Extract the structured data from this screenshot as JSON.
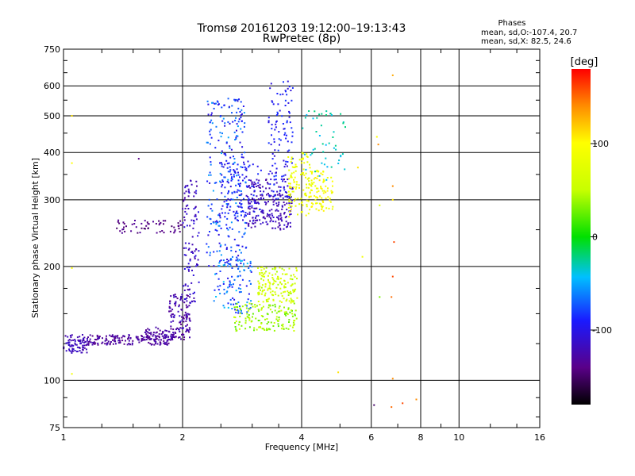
{
  "chart_data": {
    "type": "scatter",
    "title": "Tromsø 20161203 19:12:00–19:13:43",
    "subtitle": "RwPretec (8p)",
    "xlabel": "Frequency [MHz]",
    "ylabel": "Stationary phase Virtual Height [km]",
    "x_scale": "log",
    "y_scale": "log",
    "xlim": [
      1,
      16
    ],
    "ylim": [
      75,
      750
    ],
    "x_ticks": [
      1,
      2,
      4,
      6,
      8,
      10,
      16
    ],
    "x_tick_labels": [
      "1",
      "2",
      "4",
      "6",
      "8",
      "10",
      "16"
    ],
    "y_ticks": [
      75,
      100,
      200,
      300,
      400,
      500,
      600,
      750
    ],
    "y_tick_labels": [
      "75",
      "100",
      "200",
      "300",
      "400",
      "500",
      "600",
      "750"
    ],
    "grid": true,
    "stats": {
      "heading": "Phases",
      "line_o": "mean, sd,O:-107.4, 20.7",
      "line_x": "mean, sd,X: 82.5, 24.6"
    },
    "colorbar": {
      "label": "[deg]",
      "range": [
        -180,
        180
      ],
      "ticks": [
        -100,
        0,
        100
      ],
      "tick_labels": [
        "-100",
        "0",
        "100"
      ]
    },
    "clusters": [
      {
        "f": [
          1.0,
          1.15
        ],
        "h": [
          118,
          132
        ],
        "phase": [
          -130,
          -110
        ],
        "n": 80
      },
      {
        "f": [
          1.15,
          1.9
        ],
        "h": [
          124,
          132
        ],
        "phase": [
          -140,
          -120
        ],
        "n": 180
      },
      {
        "f": [
          1.6,
          2.1
        ],
        "h": [
          128,
          138
        ],
        "phase": [
          -140,
          -120
        ],
        "n": 70
      },
      {
        "f": [
          1.85,
          2.1
        ],
        "h": [
          135,
          170
        ],
        "phase": [
          -140,
          -110
        ],
        "n": 90
      },
      {
        "f": [
          2.0,
          2.2
        ],
        "h": [
          160,
          340
        ],
        "phase": [
          -130,
          -100
        ],
        "n": 110
      },
      {
        "f": [
          1.35,
          2.0
        ],
        "h": [
          245,
          265
        ],
        "phase": [
          -150,
          -130
        ],
        "n": 60
      },
      {
        "f": [
          2.3,
          2.9
        ],
        "h": [
          200,
          560
        ],
        "phase": [
          -110,
          -50
        ],
        "n": 260
      },
      {
        "f": [
          2.4,
          3.0
        ],
        "h": [
          150,
          210
        ],
        "phase": [
          -100,
          -40
        ],
        "n": 110
      },
      {
        "f": [
          2.5,
          3.2
        ],
        "h": [
          260,
          380
        ],
        "phase": [
          -110,
          -80
        ],
        "n": 120
      },
      {
        "f": [
          2.9,
          3.8
        ],
        "h": [
          250,
          340
        ],
        "phase": [
          -130,
          -110
        ],
        "n": 200
      },
      {
        "f": [
          3.3,
          3.8
        ],
        "h": [
          300,
          620
        ],
        "phase": [
          -110,
          -80
        ],
        "n": 120
      },
      {
        "f": [
          2.7,
          3.9
        ],
        "h": [
          135,
          160
        ],
        "phase": [
          20,
          60
        ],
        "n": 150
      },
      {
        "f": [
          3.1,
          3.9
        ],
        "h": [
          160,
          200
        ],
        "phase": [
          40,
          80
        ],
        "n": 150
      },
      {
        "f": [
          3.7,
          4.2
        ],
        "h": [
          270,
          400
        ],
        "phase": [
          70,
          100
        ],
        "n": 110
      },
      {
        "f": [
          4.2,
          4.8
        ],
        "h": [
          280,
          360
        ],
        "phase": [
          80,
          110
        ],
        "n": 90
      },
      {
        "f": [
          4.0,
          5.2
        ],
        "h": [
          330,
          520
        ],
        "phase": [
          -50,
          -20
        ],
        "n": 50
      }
    ],
    "sparse_points": [
      {
        "f": 5.55,
        "h": 365,
        "phase": 110
      },
      {
        "f": 5.7,
        "h": 212,
        "phase": 90
      },
      {
        "f": 6.2,
        "h": 440,
        "phase": 100
      },
      {
        "f": 6.25,
        "h": 420,
        "phase": 140
      },
      {
        "f": 6.3,
        "h": 290,
        "phase": 70
      },
      {
        "f": 6.3,
        "h": 166,
        "phase": 30
      },
      {
        "f": 6.1,
        "h": 86,
        "phase": -150
      },
      {
        "f": 6.8,
        "h": 326,
        "phase": 140
      },
      {
        "f": 6.8,
        "h": 300,
        "phase": 110
      },
      {
        "f": 6.85,
        "h": 232,
        "phase": 160
      },
      {
        "f": 6.8,
        "h": 188,
        "phase": 160
      },
      {
        "f": 6.75,
        "h": 166,
        "phase": 150
      },
      {
        "f": 6.8,
        "h": 101,
        "phase": 140
      },
      {
        "f": 6.75,
        "h": 85,
        "phase": 150
      },
      {
        "f": 7.2,
        "h": 87,
        "phase": 160
      },
      {
        "f": 7.8,
        "h": 89,
        "phase": 140
      },
      {
        "f": 6.8,
        "h": 640,
        "phase": 130
      },
      {
        "f": 1.05,
        "h": 500,
        "phase": 110
      },
      {
        "f": 1.05,
        "h": 375,
        "phase": 100
      },
      {
        "f": 1.05,
        "h": 198,
        "phase": 100
      },
      {
        "f": 1.05,
        "h": 104,
        "phase": 90
      },
      {
        "f": 1.55,
        "h": 385,
        "phase": -140
      },
      {
        "f": 4.95,
        "h": 105,
        "phase": 110
      }
    ]
  }
}
